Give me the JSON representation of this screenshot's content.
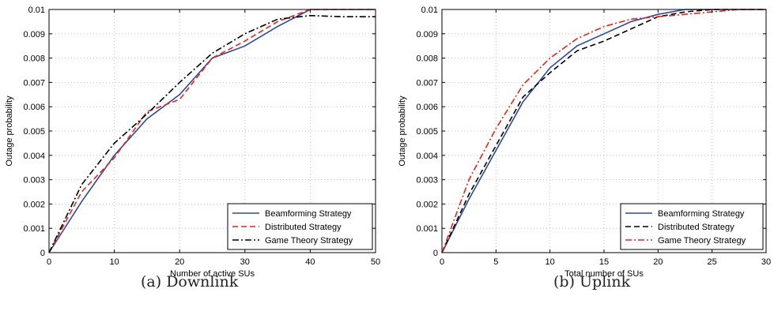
{
  "captions": [
    "(a) Downlink",
    "(b) Uplink"
  ],
  "chart_data": [
    {
      "type": "line",
      "xlabel": "Number of active SUs",
      "ylabel": "Outage probability",
      "xlim": [
        0,
        50
      ],
      "ylim": [
        0,
        0.01
      ],
      "xticks": [
        "0",
        "10",
        "20",
        "30",
        "40",
        "50"
      ],
      "yticks": [
        "0",
        "0.001",
        "0.002",
        "0.003",
        "0.004",
        "0.005",
        "0.006",
        "0.007",
        "0.008",
        "0.009",
        "0.01"
      ],
      "grid": true,
      "legend_position": "bottom-right",
      "series": [
        {
          "name": "Beamforming Strategy",
          "color": "#2b4a9a",
          "dash": "solid",
          "x": [
            0,
            5,
            10,
            15,
            20,
            25,
            30,
            35,
            40,
            45,
            50
          ],
          "y": [
            0,
            0.0021,
            0.004,
            0.0055,
            0.0065,
            0.008,
            0.0085,
            0.0093,
            0.01,
            0.01,
            0.01
          ]
        },
        {
          "name": "Distributed Strategy",
          "color": "#e8231a",
          "dash": "dashed",
          "x": [
            0,
            5,
            10,
            15,
            20,
            25,
            30,
            35,
            40,
            45,
            50
          ],
          "y": [
            0,
            0.0025,
            0.0039,
            0.0058,
            0.0063,
            0.008,
            0.0087,
            0.0095,
            0.01,
            0.01,
            0.01
          ]
        },
        {
          "name": "Game Theory Strategy",
          "color": "#000000",
          "dash": "dashdot",
          "x": [
            0,
            5,
            10,
            15,
            20,
            25,
            30,
            35,
            40,
            45,
            50
          ],
          "y": [
            0,
            0.0028,
            0.0045,
            0.0057,
            0.007,
            0.0082,
            0.009,
            0.0096,
            0.00975,
            0.0097,
            0.0097
          ]
        }
      ]
    },
    {
      "type": "line",
      "xlabel": "Total number of SUs",
      "ylabel": "Outage probability",
      "xlim": [
        0,
        30
      ],
      "ylim": [
        0,
        0.01
      ],
      "xticks": [
        "0",
        "5",
        "10",
        "15",
        "20",
        "25",
        "30"
      ],
      "yticks": [
        "0",
        "0.001",
        "0.002",
        "0.003",
        "0.004",
        "0.005",
        "0.006",
        "0.007",
        "0.008",
        "0.009",
        "0.01"
      ],
      "grid": true,
      "legend_position": "bottom-right",
      "series": [
        {
          "name": "Beamforming Strategy",
          "color": "#2b4a9a",
          "dash": "solid",
          "x": [
            0,
            2.5,
            5,
            7.5,
            10,
            12.5,
            15,
            17.5,
            20,
            22.5,
            25,
            27.5,
            30
          ],
          "y": [
            0,
            0.0022,
            0.0042,
            0.0062,
            0.0076,
            0.0085,
            0.009,
            0.0095,
            0.0098,
            0.01,
            0.01,
            0.01,
            0.01
          ]
        },
        {
          "name": "Distributed Strategy",
          "color": "#000000",
          "dash": "dashed",
          "x": [
            0,
            2.5,
            5,
            7.5,
            10,
            12.5,
            15,
            17.5,
            20,
            22.5,
            25,
            27.5,
            30
          ],
          "y": [
            0,
            0.0024,
            0.0044,
            0.0064,
            0.0074,
            0.0083,
            0.0087,
            0.0092,
            0.0097,
            0.0099,
            0.01,
            0.01,
            0.01
          ]
        },
        {
          "name": "Game Theory Strategy",
          "color": "#e8231a",
          "dash": "dashdot",
          "x": [
            0,
            2.5,
            5,
            7.5,
            10,
            12.5,
            15,
            17.5,
            20,
            22.5,
            25,
            27.5,
            30
          ],
          "y": [
            0,
            0.003,
            0.0051,
            0.0069,
            0.008,
            0.0088,
            0.0093,
            0.0096,
            0.0097,
            0.0098,
            0.0099,
            0.01,
            0.01
          ]
        }
      ]
    }
  ]
}
